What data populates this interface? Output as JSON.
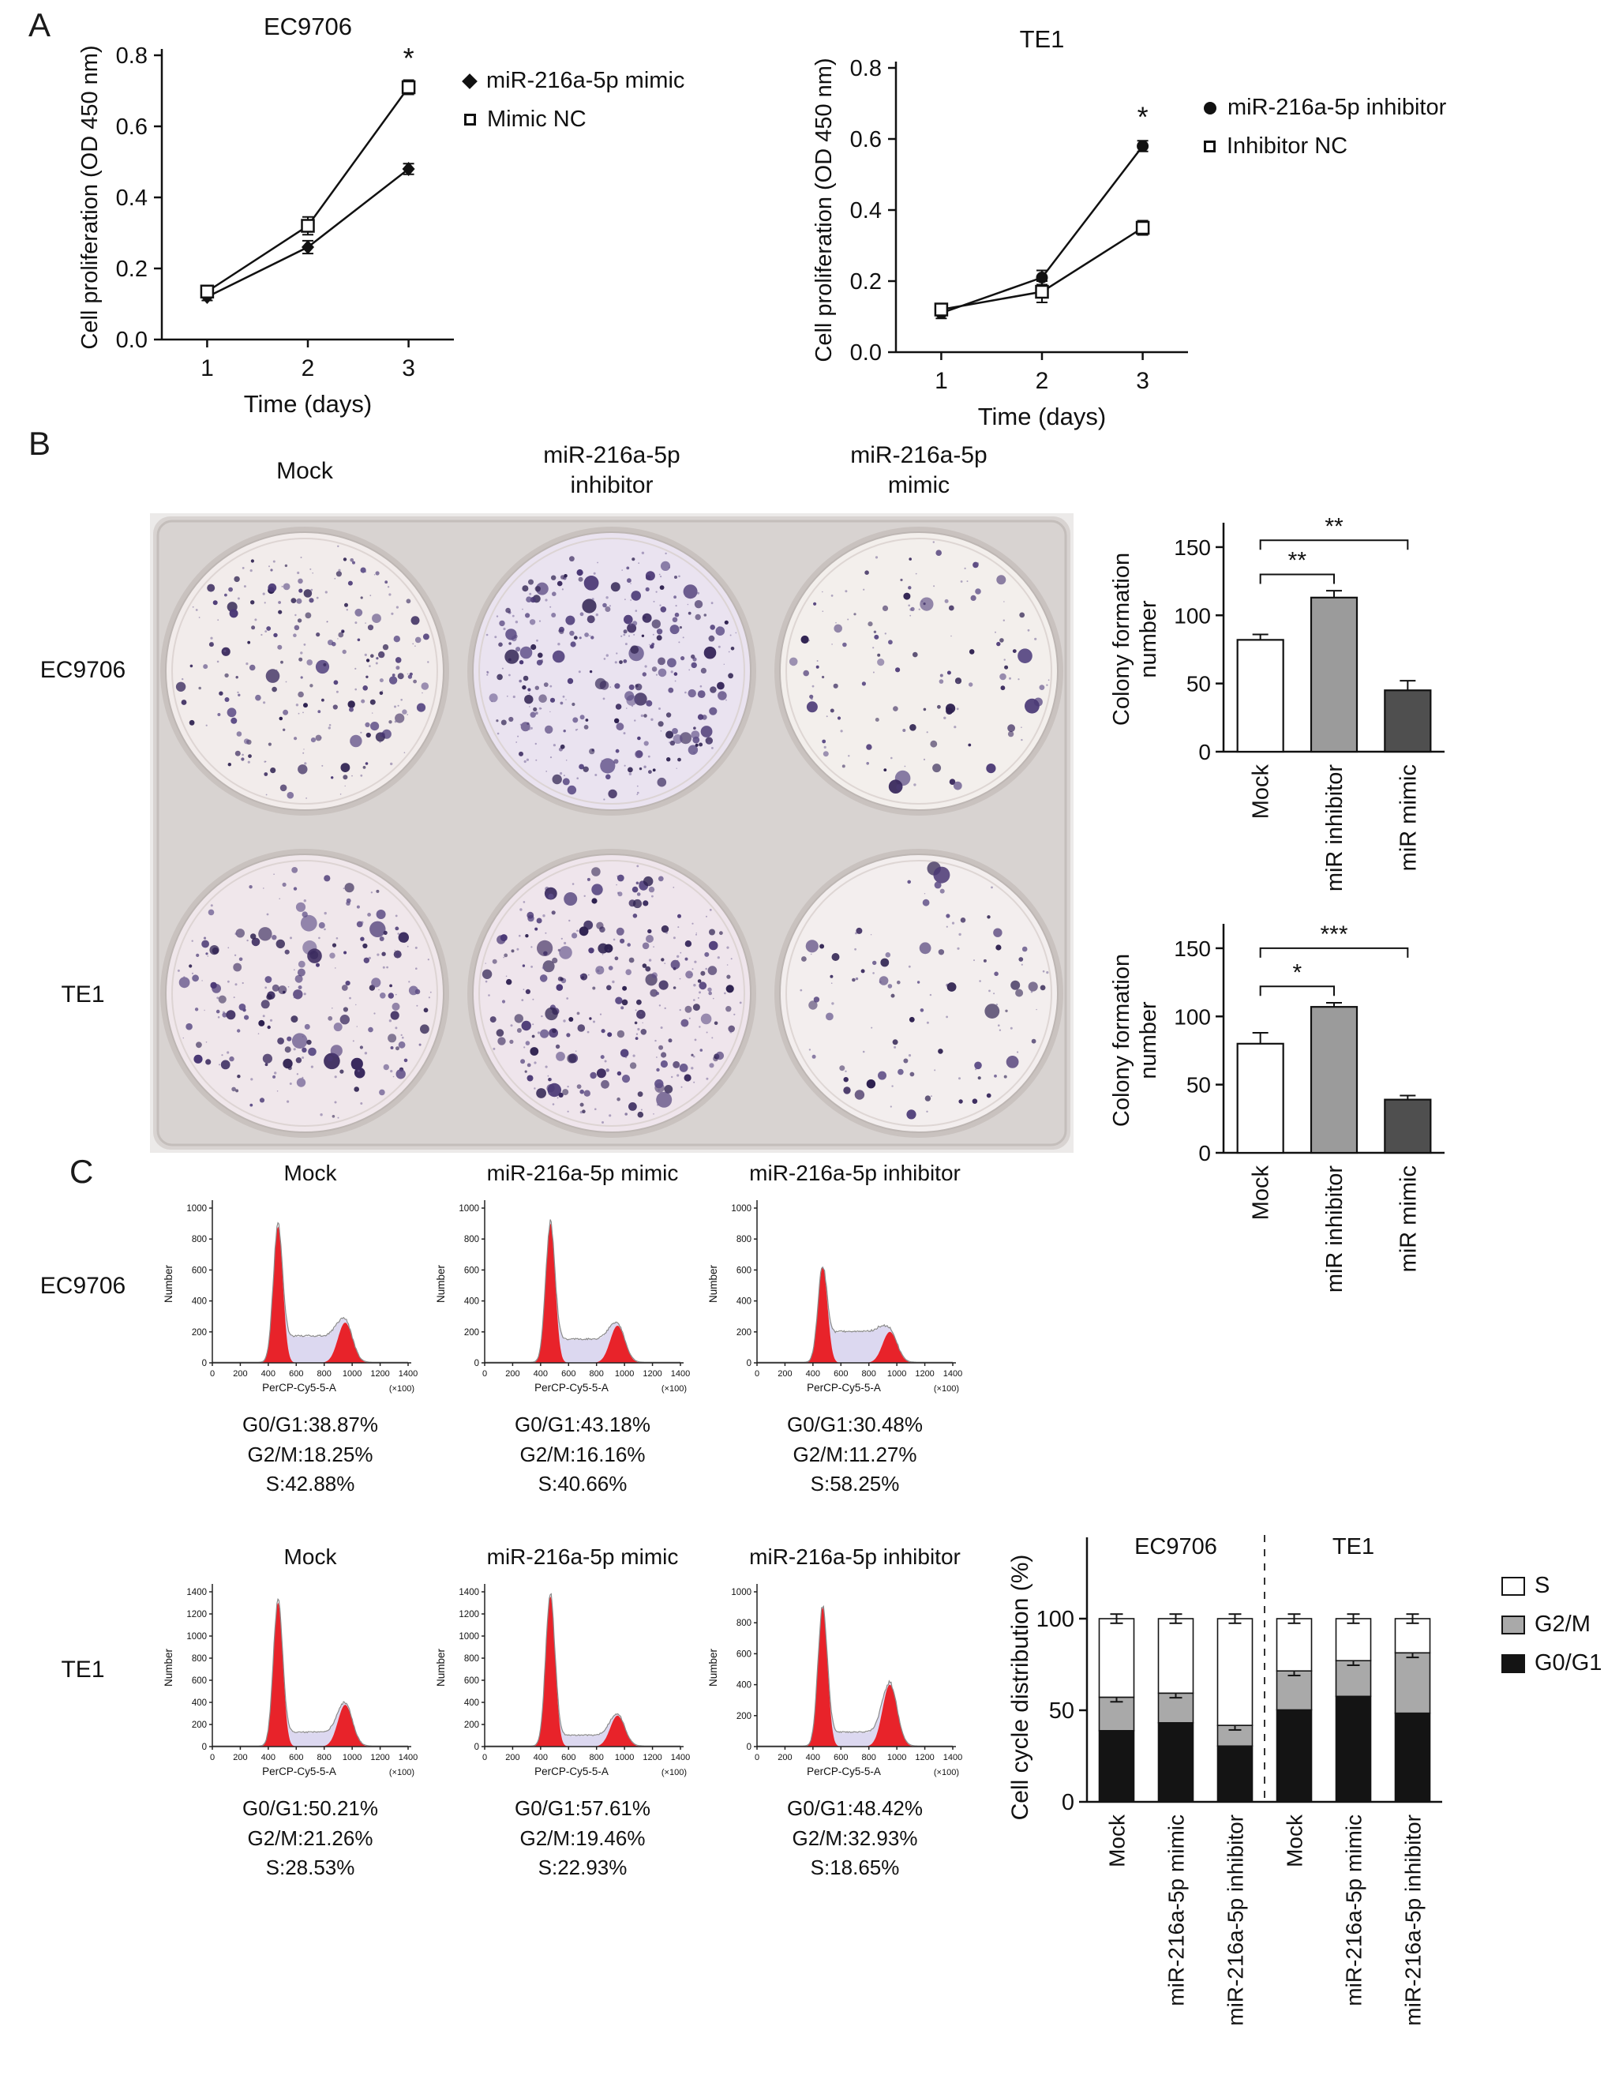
{
  "colors": {
    "axis": "#111111",
    "flow_red": "#e8232a",
    "flow_s_fill": "#dcd8f0",
    "flow_outline": "#8a8a8a",
    "colony_dot": "#3a2a5e",
    "plate_body": "#d8d3d1",
    "bar_white": "#ffffff",
    "bar_gray": "#9b9b9b",
    "bar_darkgray": "#4f4f4f"
  },
  "panels": {
    "a": "A",
    "b": "B",
    "c": "C"
  },
  "panel_b": {
    "col_headers": [
      "Mock",
      "miR-216a-5p\ninhibitor",
      "miR-216a-5p\nmimic"
    ],
    "row_labels": [
      "EC9706",
      "TE1"
    ]
  },
  "chart_data": [
    {
      "id": "proliferation-ec9706",
      "type": "line",
      "title": "EC9706",
      "xlabel": "Time (days)",
      "ylabel": "Cell proliferation (OD 450 nm)",
      "x": [
        1,
        2,
        3
      ],
      "xlim": [
        0.55,
        3.45
      ],
      "ylim": [
        0,
        0.8
      ],
      "yticks": [
        0,
        0.2,
        0.4,
        0.6,
        0.8
      ],
      "series": [
        {
          "name": "miR-216a-5p mimic",
          "marker": "filled-diamond",
          "values": [
            0.12,
            0.26,
            0.48
          ],
          "errors": [
            0.01,
            0.018,
            0.015
          ]
        },
        {
          "name": "Mimic NC",
          "marker": "open-square",
          "values": [
            0.135,
            0.32,
            0.71
          ],
          "errors": [
            0.01,
            0.025,
            0.02
          ]
        }
      ],
      "annotations": [
        {
          "text": "*",
          "x": 3,
          "y": 0.765
        }
      ]
    },
    {
      "id": "proliferation-te1",
      "type": "line",
      "title": "TE1",
      "xlabel": "Time (days)",
      "ylabel": "Cell proliferation (OD 450 nm)",
      "x": [
        1,
        2,
        3
      ],
      "xlim": [
        0.55,
        3.45
      ],
      "ylim": [
        0,
        0.8
      ],
      "yticks": [
        0,
        0.2,
        0.4,
        0.6,
        0.8
      ],
      "series": [
        {
          "name": "miR-216a-5p inhibitor",
          "marker": "filled-circle",
          "values": [
            0.11,
            0.21,
            0.58
          ],
          "errors": [
            0.015,
            0.02,
            0.015
          ]
        },
        {
          "name": "Inhibitor NC",
          "marker": "open-square",
          "values": [
            0.12,
            0.17,
            0.35
          ],
          "errors": [
            0.01,
            0.03,
            0.02
          ]
        }
      ],
      "annotations": [
        {
          "text": "*",
          "x": 3,
          "y": 0.635
        }
      ]
    },
    {
      "id": "colony-ec9706",
      "type": "bar",
      "ylabel_lines": [
        "Colony formation",
        "number"
      ],
      "categories": [
        "Mock",
        "miR inhibitor",
        "miR mimic"
      ],
      "values": [
        82,
        113,
        45
      ],
      "errors": [
        4,
        5,
        7
      ],
      "bar_colors": [
        "#ffffff",
        "#9b9b9b",
        "#4f4f4f"
      ],
      "ylim": [
        0,
        165
      ],
      "yticks": [
        0,
        50,
        100,
        150
      ],
      "significance": [
        {
          "from": 0,
          "to": 1,
          "label": "**",
          "y": 130
        },
        {
          "from": 0,
          "to": 2,
          "label": "**",
          "y": 155
        }
      ]
    },
    {
      "id": "colony-te1",
      "type": "bar",
      "ylabel_lines": [
        "Colony formation",
        "number"
      ],
      "categories": [
        "Mock",
        "miR inhibitor",
        "miR mimic"
      ],
      "values": [
        80,
        107,
        39
      ],
      "errors": [
        8,
        3,
        3
      ],
      "bar_colors": [
        "#ffffff",
        "#9b9b9b",
        "#4f4f4f"
      ],
      "ylim": [
        0,
        165
      ],
      "yticks": [
        0,
        50,
        100,
        150
      ],
      "significance": [
        {
          "from": 0,
          "to": 1,
          "label": "*",
          "y": 122
        },
        {
          "from": 0,
          "to": 2,
          "label": "***",
          "y": 150
        }
      ]
    },
    {
      "id": "cell-cycle-flow",
      "type": "histogram-grid",
      "xlabel": "PerCP-Cy5-5-A",
      "x_unit": "(×100)",
      "ylabel": "Number",
      "xticks": [
        0,
        200,
        400,
        600,
        800,
        1000,
        1200,
        1400
      ],
      "rows": [
        {
          "cell_line": "EC9706",
          "plots": [
            {
              "title": "Mock",
              "stats": [
                "G0/G1:38.87%",
                "G2/M:18.25%",
                "S:42.88%"
              ],
              "ymax": 1000,
              "p1": 0.88,
              "p2": 0.26,
              "ps": 0.17,
              "seed": 1
            },
            {
              "title": "miR-216a-5p mimic",
              "stats": [
                "G0/G1:43.18%",
                "G2/M:16.16%",
                "S:40.66%"
              ],
              "ymax": 1000,
              "p1": 0.9,
              "p2": 0.24,
              "ps": 0.15,
              "seed": 2
            },
            {
              "title": "miR-216a-5p inhibitor",
              "stats": [
                "G0/G1:30.48%",
                "G2/M:11.27%",
                "S:58.25%"
              ],
              "ymax": 1000,
              "p1": 0.62,
              "p2": 0.2,
              "ps": 0.2,
              "seed": 3
            }
          ]
        },
        {
          "cell_line": "TE1",
          "plots": [
            {
              "title": "Mock",
              "stats": [
                "G0/G1:50.21%",
                "G2/M:21.26%",
                "S:28.53%"
              ],
              "ymax": 1400,
              "p1": 0.93,
              "p2": 0.27,
              "ps": 0.09,
              "seed": 4
            },
            {
              "title": "miR-216a-5p mimic",
              "stats": [
                "G0/G1:57.61%",
                "G2/M:19.46%",
                "S:22.93%"
              ],
              "ymax": 1400,
              "p1": 0.97,
              "p2": 0.2,
              "ps": 0.07,
              "seed": 5
            },
            {
              "title": "miR-216a-5p inhibitor",
              "stats": [
                "G0/G1:48.42%",
                "G2/M:32.93%",
                "S:18.65%"
              ],
              "ymax": 1000,
              "p1": 0.9,
              "p2": 0.4,
              "ps": 0.09,
              "seed": 6
            }
          ]
        }
      ]
    },
    {
      "id": "cell-cycle-distribution",
      "type": "bar",
      "stacked": true,
      "ylabel": "Cell cycle distribution (%)",
      "group_labels": [
        "EC9706",
        "TE1"
      ],
      "categories": [
        "Mock",
        "miR-216a-5p mimic",
        "miR-216a-5p inhibitor",
        "Mock",
        "miR-216a-5p mimic",
        "miR-216a-5p inhibitor"
      ],
      "series": [
        {
          "name": "G0/G1",
          "color": "#141414",
          "values": [
            38.87,
            43.18,
            30.48,
            50.21,
            57.61,
            48.42
          ]
        },
        {
          "name": "G2/M",
          "color": "#a9a9a9",
          "values": [
            18.25,
            16.16,
            11.27,
            21.26,
            19.46,
            32.93
          ]
        },
        {
          "name": "S",
          "color": "#ffffff",
          "values": [
            42.88,
            40.66,
            58.25,
            28.53,
            22.93,
            18.65
          ]
        }
      ],
      "legend": [
        {
          "label": "S",
          "color": "#ffffff"
        },
        {
          "label": "G2/M",
          "color": "#a9a9a9"
        },
        {
          "label": "G0/G1",
          "color": "#141414"
        }
      ],
      "ylim": [
        0,
        125
      ],
      "yticks": [
        0,
        50,
        100
      ],
      "err": 2.5
    }
  ]
}
